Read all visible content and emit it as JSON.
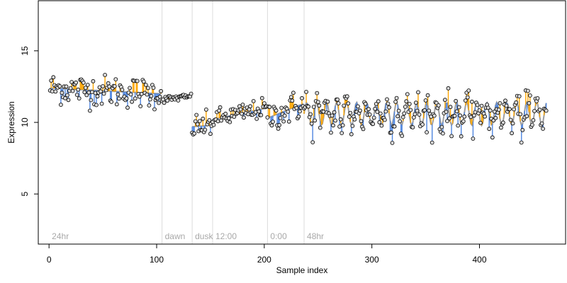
{
  "chart_data": {
    "type": "scatter",
    "title": "",
    "xlabel": "Sample index",
    "ylabel": "Expression",
    "xlim": [
      -10,
      480
    ],
    "ylim": [
      1.5,
      18.5
    ],
    "x_ticks": [
      0,
      100,
      200,
      300,
      400
    ],
    "y_ticks": [
      5,
      10,
      15
    ],
    "grid": false,
    "legend": "none",
    "colors": {
      "points_fill": "#d9d9d9",
      "points_stroke": "#000000",
      "fitted_line": "#9e9e9e",
      "residual_above": "#ffa500",
      "residual_below": "#4f86e0",
      "annotation_lines": "#dcdcdc",
      "annotation_text": "#a8a8a8"
    },
    "annotations": [
      {
        "label": "24hr",
        "x": 0
      },
      {
        "label": "dawn",
        "x": 105
      },
      {
        "label": "dusk",
        "x": 133
      },
      {
        "label": "12:00",
        "x": 152
      },
      {
        "label": "0:00",
        "x": 203
      },
      {
        "label": "48hr",
        "x": 237
      }
    ],
    "segments": [
      {
        "name": "24hr",
        "x_start": 1,
        "x_end": 104,
        "fit": {
          "type": "linear",
          "y_start": 12.4,
          "y_end": 12.0
        },
        "noise": 0.55
      },
      {
        "name": "dawn",
        "x_start": 105,
        "x_end": 132,
        "fit": {
          "type": "linear",
          "y_start": 11.6,
          "y_end": 11.8
        },
        "noise": 0.12
      },
      {
        "name": "dusk",
        "x_start": 133,
        "x_end": 151,
        "fit": {
          "type": "linear",
          "y_start": 9.7,
          "y_end": 9.8
        },
        "noise": 0.45
      },
      {
        "name": "12:00",
        "x_start": 152,
        "x_end": 202,
        "fit": {
          "type": "linear",
          "y_start": 10.2,
          "y_end": 11.0
        },
        "noise": 0.35
      },
      {
        "name": "0:00",
        "x_start": 203,
        "x_end": 236,
        "fit": {
          "type": "linear",
          "y_start": 10.3,
          "y_end": 11.3
        },
        "noise": 0.55
      },
      {
        "name": "48hr",
        "x_start": 237,
        "x_end": 462,
        "fit": {
          "type": "periodic",
          "base": 10.6,
          "amplitude": 0.8,
          "period": 9.3
        },
        "noise": 0.6
      }
    ]
  }
}
